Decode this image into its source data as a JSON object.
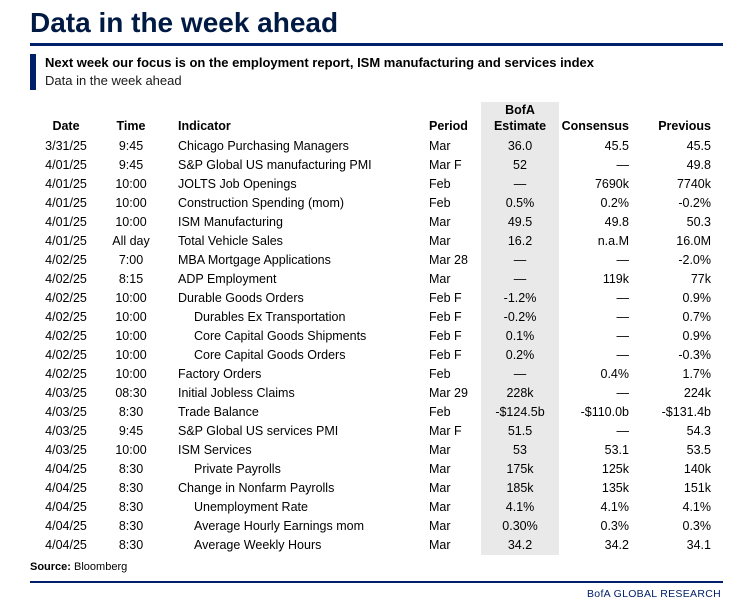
{
  "page": {
    "title": "Data in the week ahead",
    "highlight_bold": "Next week our focus is on the employment report, ISM manufacturing and services index",
    "highlight_sub": "Data in the week ahead",
    "source_label": "Source:",
    "source_value": "Bloomberg",
    "footer": "BofA GLOBAL RESEARCH"
  },
  "colors": {
    "navy": "#002169",
    "title_navy": "#001a43",
    "estimate_column_bg": "#e9e9e9"
  },
  "chart_data": {
    "type": "table",
    "title": "Data in the week ahead",
    "columns": [
      "Date",
      "Time",
      "Indicator",
      "Period",
      "BofA Estimate",
      "Consensus",
      "Previous"
    ],
    "rows": [
      {
        "date": "3/31/25",
        "time": "9:45",
        "indicator": "Chicago Purchasing Managers",
        "period": "Mar",
        "estimate": "36.0",
        "consensus": "45.5",
        "previous": "45.5",
        "indent": false
      },
      {
        "date": "4/01/25",
        "time": "9:45",
        "indicator": "S&P Global US manufacturing PMI",
        "period": "Mar F",
        "estimate": "52",
        "consensus": "—",
        "previous": "49.8",
        "indent": false
      },
      {
        "date": "4/01/25",
        "time": "10:00",
        "indicator": "JOLTS Job Openings",
        "period": "Feb",
        "estimate": "—",
        "consensus": "7690k",
        "previous": "7740k",
        "indent": false
      },
      {
        "date": "4/01/25",
        "time": "10:00",
        "indicator": "Construction Spending (mom)",
        "period": "Feb",
        "estimate": "0.5%",
        "consensus": "0.2%",
        "previous": "-0.2%",
        "indent": false
      },
      {
        "date": "4/01/25",
        "time": "10:00",
        "indicator": "ISM Manufacturing",
        "period": "Mar",
        "estimate": "49.5",
        "consensus": "49.8",
        "previous": "50.3",
        "indent": false
      },
      {
        "date": "4/01/25",
        "time": "All day",
        "indicator": "Total Vehicle Sales",
        "period": "Mar",
        "estimate": "16.2",
        "consensus": "n.a.M",
        "previous": "16.0M",
        "indent": false
      },
      {
        "date": "4/02/25",
        "time": "7:00",
        "indicator": "MBA Mortgage Applications",
        "period": "Mar 28",
        "estimate": "—",
        "consensus": "—",
        "previous": "-2.0%",
        "indent": false
      },
      {
        "date": "4/02/25",
        "time": "8:15",
        "indicator": "ADP Employment",
        "period": "Mar",
        "estimate": "—",
        "consensus": "119k",
        "previous": "77k",
        "indent": false
      },
      {
        "date": "4/02/25",
        "time": "10:00",
        "indicator": "Durable Goods Orders",
        "period": "Feb F",
        "estimate": "-1.2%",
        "consensus": "—",
        "previous": "0.9%",
        "indent": false
      },
      {
        "date": "4/02/25",
        "time": "10:00",
        "indicator": "Durables Ex Transportation",
        "period": "Feb F",
        "estimate": "-0.2%",
        "consensus": "—",
        "previous": "0.7%",
        "indent": true
      },
      {
        "date": "4/02/25",
        "time": "10:00",
        "indicator": "Core Capital Goods Shipments",
        "period": "Feb F",
        "estimate": "0.1%",
        "consensus": "—",
        "previous": "0.9%",
        "indent": true
      },
      {
        "date": "4/02/25",
        "time": "10:00",
        "indicator": "Core Capital Goods Orders",
        "period": "Feb F",
        "estimate": "0.2%",
        "consensus": "—",
        "previous": "-0.3%",
        "indent": true
      },
      {
        "date": "4/02/25",
        "time": "10:00",
        "indicator": "Factory Orders",
        "period": "Feb",
        "estimate": "—",
        "consensus": "0.4%",
        "previous": "1.7%",
        "indent": false
      },
      {
        "date": "4/03/25",
        "time": "08:30",
        "indicator": "Initial Jobless Claims",
        "period": "Mar 29",
        "estimate": "228k",
        "consensus": "—",
        "previous": "224k",
        "indent": false
      },
      {
        "date": "4/03/25",
        "time": "8:30",
        "indicator": "Trade Balance",
        "period": "Feb",
        "estimate": "-$124.5b",
        "consensus": "-$110.0b",
        "previous": "-$131.4b",
        "indent": false
      },
      {
        "date": "4/03/25",
        "time": "9:45",
        "indicator": "S&P Global US services PMI",
        "period": "Mar F",
        "estimate": "51.5",
        "consensus": "—",
        "previous": "54.3",
        "indent": false
      },
      {
        "date": "4/03/25",
        "time": "10:00",
        "indicator": "ISM Services",
        "period": "Mar",
        "estimate": "53",
        "consensus": "53.1",
        "previous": "53.5",
        "indent": false
      },
      {
        "date": "4/04/25",
        "time": "8:30",
        "indicator": "Private Payrolls",
        "period": "Mar",
        "estimate": "175k",
        "consensus": "125k",
        "previous": "140k",
        "indent": true
      },
      {
        "date": "4/04/25",
        "time": "8:30",
        "indicator": "Change in Nonfarm Payrolls",
        "period": "Mar",
        "estimate": "185k",
        "consensus": "135k",
        "previous": "151k",
        "indent": false
      },
      {
        "date": "4/04/25",
        "time": "8:30",
        "indicator": "Unemployment Rate",
        "period": "Mar",
        "estimate": "4.1%",
        "consensus": "4.1%",
        "previous": "4.1%",
        "indent": true
      },
      {
        "date": "4/04/25",
        "time": "8:30",
        "indicator": "Average Hourly Earnings mom",
        "period": "Mar",
        "estimate": "0.30%",
        "consensus": "0.3%",
        "previous": "0.3%",
        "indent": true
      },
      {
        "date": "4/04/25",
        "time": "8:30",
        "indicator": "Average Weekly Hours",
        "period": "Mar",
        "estimate": "34.2",
        "consensus": "34.2",
        "previous": "34.1",
        "indent": true
      }
    ]
  }
}
